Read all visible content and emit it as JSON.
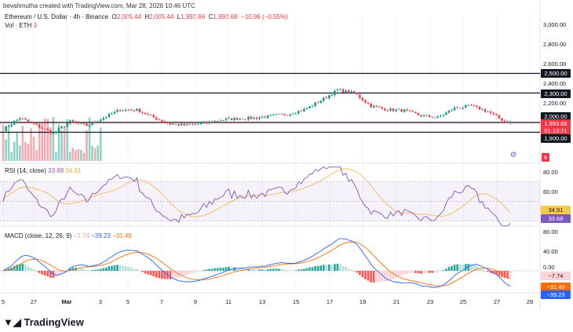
{
  "header": {
    "credit": "bevahmutha created with TradingView.com, Mar 28, 2026 10:46 UTC",
    "symbol": "Ethereum / U.S. Dollar · 4h · Binance",
    "o_label": "O",
    "o": "2,005.44",
    "h_label": "H",
    "h": "2,005.44",
    "l_label": "L",
    "l": "1,993.66",
    "c_label": "C",
    "c": "1,993.68",
    "change": "−10.96 (−0.55%)",
    "vol_label": "Vol · ETH",
    "vol": "9"
  },
  "price_axis": [
    "3,000.00",
    "2,800.00",
    "2,600.00",
    "2,400.00",
    "2,200.00"
  ],
  "levels": [
    {
      "label": "2,500.00",
      "price": 2500
    },
    {
      "label": "2,300.00",
      "price": 2300
    },
    {
      "label": "2,000.00",
      "price": 2000
    },
    {
      "label": "1,900.00",
      "price": 1900
    }
  ],
  "current": {
    "price": "1,993.68",
    "countdown": "01:13:21",
    "vol_tag": "9"
  },
  "rsi": {
    "title": "RSI (14, close)",
    "value": "33.68",
    "ma": "34.91",
    "axis": [
      "80.00",
      "60.00"
    ]
  },
  "macd": {
    "title": "MACD (close, 12, 26, 9)",
    "hist": "−7.74",
    "macd": "−39.23",
    "signal": "−31.49",
    "axis": [
      "80.00",
      "40.00",
      "0.00"
    ]
  },
  "dates": [
    "5",
    "27",
    "Mar",
    "3",
    "5",
    "7",
    "9",
    "11",
    "13",
    "15",
    "17",
    "19",
    "21",
    "23",
    "25",
    "27",
    "29"
  ],
  "logo": "TradingView",
  "colors": {
    "up": "#089981",
    "down": "#f23645",
    "rsi": "#7e57c2",
    "rsi_ma": "#f7b955",
    "macd": "#2962ff",
    "signal": "#ff6d00"
  },
  "chart_data": {
    "type": "candlestick",
    "interval": "4h",
    "daily_close_approx": [
      1928,
      2048,
      1968,
      1888,
      2008,
      1968,
      2048,
      2128,
      2128,
      2050,
      1984,
      1970,
      1990,
      2024,
      2040,
      2045,
      2064,
      2085,
      2128,
      2224,
      2328,
      2300,
      2168,
      2130,
      2120,
      2070,
      2050,
      2144,
      2168,
      2110,
      2008,
      1994
    ]
  }
}
